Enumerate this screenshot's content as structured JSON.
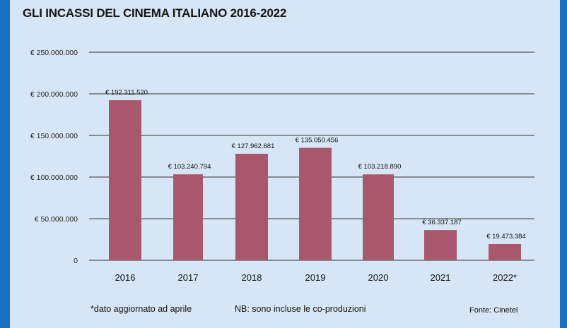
{
  "title": "GLI INCASSI DEL CINEMA ITALIANO 2016-2022",
  "colors": {
    "background": "#d6e6f6",
    "frame": "#1a72c4",
    "bar": "#a8576c",
    "grid": "#333333"
  },
  "footnotes": {
    "note": "*dato aggiornato ad aprile",
    "nb": "NB: sono incluse le co-produzioni",
    "source": "Fonte: Cinetel"
  },
  "chart_data": {
    "type": "bar",
    "title": "GLI INCASSI DEL CINEMA ITALIANO 2016-2022",
    "xlabel": "",
    "ylabel": "",
    "ylim": [
      0,
      250000000
    ],
    "grid": true,
    "categories": [
      "2016",
      "2017",
      "2018",
      "2019",
      "2020",
      "2021",
      "2022*"
    ],
    "values": [
      192311520,
      103240794,
      127962681,
      135050456,
      103218890,
      36337187,
      19473384
    ],
    "value_labels": [
      "€ 192.311.520",
      "€ 103.240.794",
      "€ 127.962.681",
      "€ 135.050.456",
      "€ 103.218.890",
      "€ 36.337.187",
      "€ 19.473.384"
    ],
    "y_ticks": [
      0,
      50000000,
      100000000,
      150000000,
      200000000,
      250000000
    ],
    "y_tick_labels": [
      "0",
      "€ 50.000.000",
      "€ 100.000.000",
      "€ 150.000.000",
      "€ 200.000.000",
      "€ 250.000.000"
    ]
  }
}
